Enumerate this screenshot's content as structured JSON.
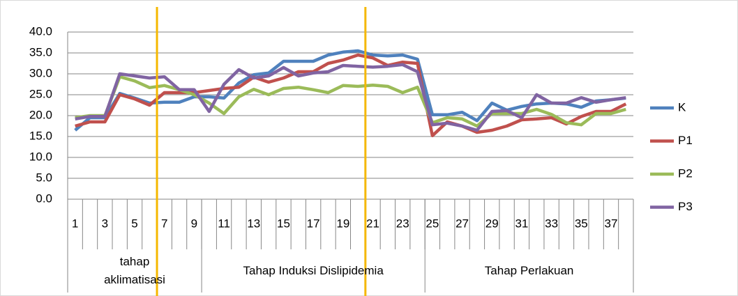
{
  "chart_data": {
    "type": "line",
    "categories": [
      1,
      null,
      3,
      null,
      5,
      null,
      7,
      null,
      9,
      null,
      11,
      null,
      13,
      null,
      15,
      null,
      17,
      null,
      19,
      null,
      21,
      null,
      23,
      null,
      25,
      null,
      27,
      null,
      29,
      null,
      31,
      null,
      33,
      null,
      35,
      null,
      37,
      null
    ],
    "category_groups": [
      "tahap aklimatisasi",
      "Tahap Induksi Dislipidemia",
      "Tahap Perlakuan"
    ],
    "series": [
      {
        "name": "K",
        "color": "#4f81bd",
        "values": [
          16.5,
          19.5,
          19.5,
          25.3,
          24.2,
          23,
          23.2,
          23.2,
          24.5,
          24.5,
          24.2,
          27.8,
          29.8,
          30.2,
          33,
          33,
          33,
          34.5,
          35.2,
          35.5,
          34.5,
          34.3,
          34.5,
          33.5,
          20.2,
          20.2,
          20.8,
          18.8,
          23,
          21.3,
          22.2,
          22.8,
          23,
          22.8,
          22,
          23.5,
          23.8,
          24.2
        ]
      },
      {
        "name": "P1",
        "color": "#c0504d",
        "values": [
          17.5,
          18.5,
          18.5,
          25,
          24,
          22.5,
          25.5,
          25.5,
          25.5,
          26,
          26.5,
          26.8,
          29.2,
          28,
          29,
          30.5,
          30.5,
          32.5,
          33.3,
          34.5,
          33.8,
          32,
          32.8,
          32.5,
          15.2,
          18.5,
          17.5,
          16,
          16.5,
          17.5,
          19,
          19.2,
          19.5,
          18,
          19.8,
          21,
          21,
          22.8
        ]
      },
      {
        "name": "P2",
        "color": "#9bbb59",
        "values": [
          19.5,
          20,
          20,
          29.3,
          28.3,
          26.7,
          27.2,
          26.2,
          25,
          23,
          20.5,
          24.5,
          26.3,
          25,
          26.5,
          26.8,
          26.2,
          25.5,
          27.2,
          27,
          27.3,
          27,
          25.5,
          26.8,
          18.3,
          19.5,
          19.2,
          17.5,
          20.5,
          20.5,
          20.5,
          21.5,
          20.3,
          18.3,
          17.8,
          20.5,
          20.5,
          21.5
        ]
      },
      {
        "name": "P3",
        "color": "#8064a2",
        "values": [
          19.2,
          19.8,
          19.8,
          30,
          29.5,
          29,
          29.3,
          26.2,
          26.2,
          21,
          27.5,
          31,
          29,
          29.5,
          31.5,
          29.5,
          30.2,
          30.5,
          32,
          31.8,
          31.6,
          31.8,
          32.2,
          30.5,
          17.8,
          18.2,
          17.5,
          16.5,
          21,
          21.2,
          19.5,
          25,
          23,
          23,
          24.3,
          23.2,
          23.8,
          24.3
        ]
      }
    ],
    "ylim": [
      0,
      40
    ],
    "yticks": [
      {
        "value": 0,
        "label": "0.0"
      },
      {
        "value": 5,
        "label": "5.0"
      },
      {
        "value": 10,
        "label": "10.0"
      },
      {
        "value": 15,
        "label": "15.0"
      },
      {
        "value": 20,
        "label": "20.0"
      },
      {
        "value": 25,
        "label": "25.0"
      },
      {
        "value": 30,
        "label": "30.0"
      },
      {
        "value": 35,
        "label": "35.0"
      },
      {
        "value": 40,
        "label": "40.0"
      }
    ],
    "grid": true,
    "legend": "right"
  }
}
